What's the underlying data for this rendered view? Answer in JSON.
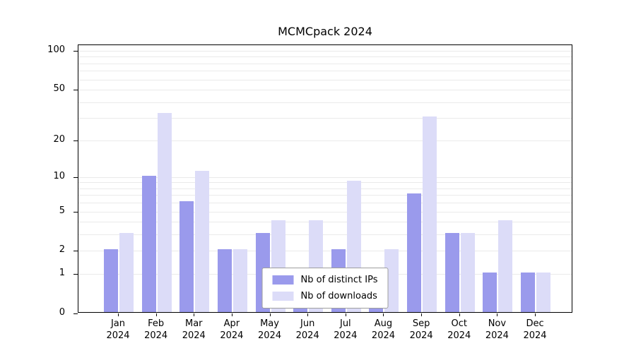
{
  "title": "MCMCpack 2024",
  "chart_data": {
    "type": "bar",
    "title": "MCMCpack 2024",
    "categories": [
      "Jan",
      "Feb",
      "Mar",
      "Apr",
      "May",
      "Jun",
      "Jul",
      "Aug",
      "Sep",
      "Oct",
      "Nov",
      "Dec"
    ],
    "x_year": "2024",
    "series": [
      {
        "name": "Nb of distinct IPs",
        "color": "#9a9aec",
        "values": [
          2,
          10,
          6,
          2,
          3,
          1,
          2,
          1,
          7,
          3,
          1,
          1
        ]
      },
      {
        "name": "Nb of downloads",
        "color": "#dcdcf8",
        "values": [
          3,
          32,
          11,
          2,
          4,
          4,
          9,
          2,
          30,
          3,
          4,
          1
        ]
      }
    ],
    "yticks": [
      0,
      1,
      2,
      5,
      10,
      20,
      50,
      100
    ],
    "minor_gridlines": [
      1,
      2,
      3,
      4,
      5,
      6,
      7,
      8,
      9,
      10,
      20,
      30,
      40,
      50,
      60,
      70,
      80,
      90,
      100
    ],
    "scale": "log1p",
    "ylim": [
      0,
      100
    ],
    "grid": "on",
    "legend_position": "bottom-center",
    "xlabel": "",
    "ylabel": ""
  }
}
